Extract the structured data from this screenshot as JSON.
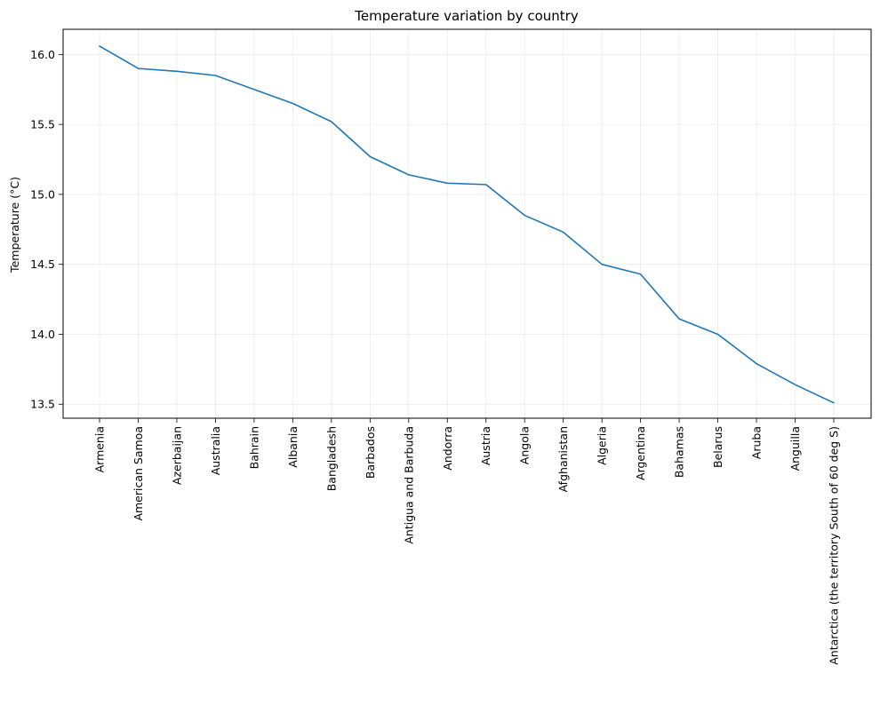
{
  "chart_data": {
    "type": "line",
    "title": "Temperature variation by country",
    "xlabel": "",
    "ylabel": "Temperature (°C)",
    "ylim": [
      13.4,
      16.18
    ],
    "yticks": [
      13.5,
      14.0,
      14.5,
      15.0,
      15.5,
      16.0
    ],
    "ytick_labels": [
      "13.5",
      "14.0",
      "14.5",
      "15.0",
      "15.5",
      "16.0"
    ],
    "grid": true,
    "legend": "none",
    "line_color": "#1f77b4",
    "grid_color": "#ebebeb",
    "categories": [
      "Armenia",
      "American Samoa",
      "Azerbaijan",
      "Australia",
      "Bahrain",
      "Albania",
      "Bangladesh",
      "Barbados",
      "Antigua and Barbuda",
      "Andorra",
      "Austria",
      "Angola",
      "Afghanistan",
      "Algeria",
      "Argentina",
      "Bahamas",
      "Belarus",
      "Aruba",
      "Anguilla",
      "Antarctica (the territory South of 60 deg S)"
    ],
    "values": [
      16.06,
      15.9,
      15.88,
      15.85,
      15.75,
      15.65,
      15.52,
      15.27,
      15.14,
      15.08,
      15.07,
      14.85,
      14.73,
      14.5,
      14.43,
      14.11,
      14.0,
      13.79,
      13.64,
      13.51
    ]
  }
}
